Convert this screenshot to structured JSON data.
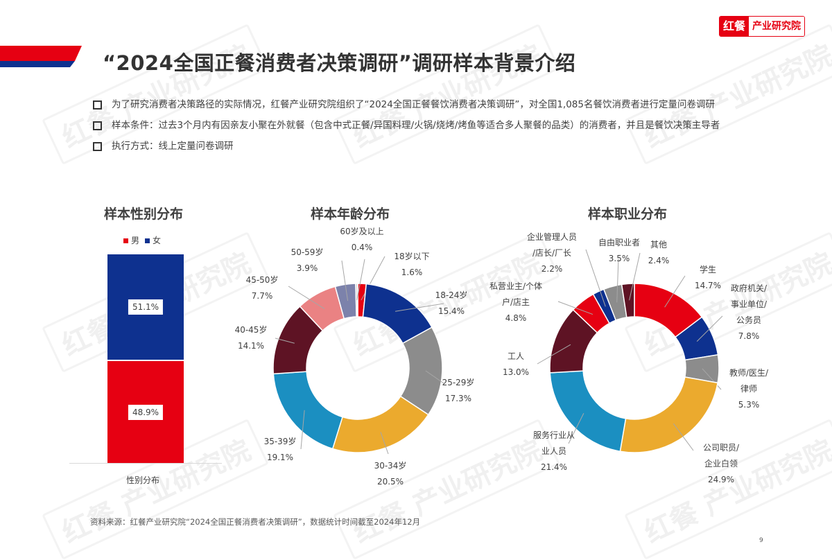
{
  "header": {
    "title": "“2024全国正餐消费者决策调研”调研样本背景介绍",
    "logo": {
      "part1": "红餐",
      "part2": "产业研究院"
    }
  },
  "colors": {
    "red": "#e60012",
    "navy": "#0e318f",
    "gray": "#8c8c8c",
    "gold": "#ebaa2e",
    "cyan": "#1b8fc1",
    "maroon": "#5e1324",
    "pink": "#ea8283",
    "lavender": "#7c82ab",
    "light": "#d9d9d9"
  },
  "bullets": [
    "为了研究消费者决策路径的实际情况，红餐产业研究院组织了“2024全国正餐餐饮消费者决策调研”，对全国1,085名餐饮消费者进行定量问卷调研",
    "样本条件：过去3个月内有因亲友小聚在外就餐（包含中式正餐/异国料理/火锅/烧烤/烤鱼等适合多人聚餐的品类）的消费者，并且是餐饮决策主导者",
    "执行方式：线上定量问卷调研"
  ],
  "chart_data": [
    {
      "type": "bar",
      "title": "样本性别分布",
      "stacked": true,
      "categories": [
        "性别分布"
      ],
      "series": [
        {
          "name": "男",
          "values": [
            48.9
          ],
          "label": "48.9%",
          "color": "#e60012"
        },
        {
          "name": "女",
          "values": [
            51.1
          ],
          "label": "51.1%",
          "color": "#0e318f"
        }
      ],
      "legend": [
        "男",
        "女"
      ],
      "legend_position": "top",
      "xlabel": "性别分布",
      "ylim": [
        0,
        100
      ]
    },
    {
      "type": "pie",
      "donut": true,
      "title": "样本年龄分布",
      "categories": [
        "18岁以下",
        "18-24岁",
        "25-29岁",
        "30-34岁",
        "35-39岁",
        "40-45岁",
        "45-50岁",
        "50-59岁",
        "60岁及以上"
      ],
      "values": [
        1.6,
        15.4,
        17.3,
        20.5,
        19.1,
        14.1,
        7.7,
        3.9,
        0.4
      ],
      "labels": [
        "1.6%",
        "15.4%",
        "17.3%",
        "20.5%",
        "19.1%",
        "14.1%",
        "7.7%",
        "3.9%",
        "0.4%"
      ],
      "colors": [
        "#e60012",
        "#0e318f",
        "#8c8c8c",
        "#ebaa2e",
        "#1b8fc1",
        "#5e1324",
        "#ea8283",
        "#7c82ab",
        "#d9d9d9"
      ]
    },
    {
      "type": "pie",
      "donut": true,
      "title": "样本职业分布",
      "categories": [
        "学生",
        "政府机关/事业单位/公务员",
        "教师/医生/律师",
        "公司职员/企业白领",
        "服务行业从业人员",
        "工人",
        "私营业主/个体户/店主",
        "企业管理人员/店长/厂长",
        "自由职业者",
        "其他"
      ],
      "values": [
        14.7,
        7.8,
        5.3,
        24.9,
        21.4,
        13.0,
        4.8,
        2.2,
        3.5,
        2.4
      ],
      "labels": [
        "14.7%",
        "7.8%",
        "5.3%",
        "24.9%",
        "21.4%",
        "13.0%",
        "4.8%",
        "2.2%",
        "3.5%",
        "2.4%"
      ],
      "colors": [
        "#e60012",
        "#0e318f",
        "#8c8c8c",
        "#ebaa2e",
        "#1b8fc1",
        "#5e1324",
        "#e60012",
        "#0e318f",
        "#8c8c8c",
        "#5e1324"
      ]
    }
  ],
  "gender": {
    "title": "样本性别分布",
    "legend_male": "男",
    "legend_female": "女",
    "female_label": "51.1%",
    "male_label": "48.9%",
    "axis_label": "性别分布"
  },
  "age": {
    "title": "样本年龄分布",
    "labels": [
      {
        "name": "18岁以下",
        "pct": "1.6%"
      },
      {
        "name": "18-24岁",
        "pct": "15.4%"
      },
      {
        "name": "25-29岁",
        "pct": "17.3%"
      },
      {
        "name": "30-34岁",
        "pct": "20.5%"
      },
      {
        "name": "35-39岁",
        "pct": "19.1%"
      },
      {
        "name": "40-45岁",
        "pct": "14.1%"
      },
      {
        "name": "45-50岁",
        "pct": "7.7%"
      },
      {
        "name": "50-59岁",
        "pct": "3.9%"
      },
      {
        "name": "60岁及以上",
        "pct": "0.4%"
      }
    ]
  },
  "occupation": {
    "title": "样本职业分布",
    "labels": [
      {
        "lines": [
          "学生"
        ],
        "pct": "14.7%"
      },
      {
        "lines": [
          "政府机关/",
          "事业单位/",
          "公务员"
        ],
        "pct": "7.8%"
      },
      {
        "lines": [
          "教师/医生/",
          "律师"
        ],
        "pct": "5.3%"
      },
      {
        "lines": [
          "公司职员/",
          "企业白领"
        ],
        "pct": "24.9%"
      },
      {
        "lines": [
          "服务行业从",
          "业人员"
        ],
        "pct": "21.4%"
      },
      {
        "lines": [
          "工人"
        ],
        "pct": "13.0%"
      },
      {
        "lines": [
          "私营业主/个体",
          "户/店主"
        ],
        "pct": "4.8%"
      },
      {
        "lines": [
          "企业管理人员",
          "/店长/厂长"
        ],
        "pct": "2.2%"
      },
      {
        "lines": [
          "自由职业者"
        ],
        "pct": "3.5%"
      },
      {
        "lines": [
          "其他"
        ],
        "pct": "2.4%"
      }
    ]
  },
  "footer": {
    "source": "资料来源：红餐产业研究院“2024全国正餐消费者决策调研”，数据统计时间截至2024年12月",
    "page_number": "9"
  },
  "watermark": "红餐 产业研究院"
}
